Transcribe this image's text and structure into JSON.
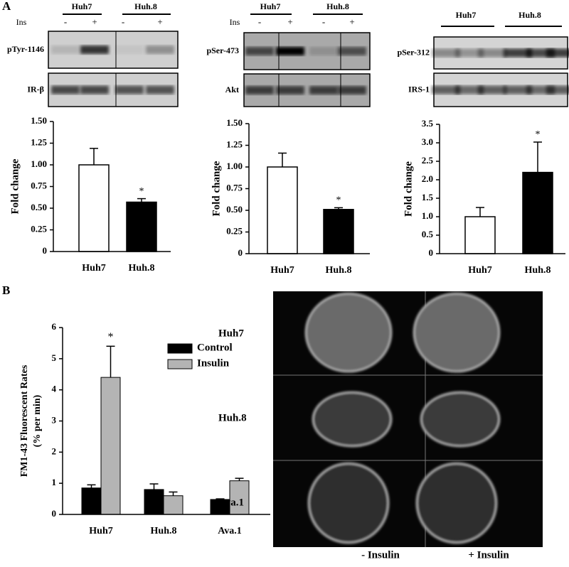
{
  "panels": [
    "A",
    "B"
  ],
  "blots": [
    {
      "lanes": [
        "Huh7",
        "Huh.8"
      ],
      "treatment": "Ins",
      "signs": [
        "-",
        "+",
        "-",
        "+"
      ],
      "rows": [
        "pTyr-1146",
        "IR-β"
      ]
    },
    {
      "lanes": [
        "Huh7",
        "Huh.8"
      ],
      "treatment": "Ins",
      "signs": [
        "-",
        "+",
        "-",
        "+"
      ],
      "rows": [
        "pSer-473",
        "Akt"
      ]
    },
    {
      "lanes": [
        "Huh7",
        "Huh.8"
      ],
      "rows": [
        "pSer-312",
        "IRS-1"
      ]
    }
  ],
  "chart_data": [
    {
      "type": "bar",
      "ylabel": "Fold change",
      "categories": [
        "Huh7",
        "Huh.8"
      ],
      "values": [
        1.0,
        0.57
      ],
      "errors": [
        0.19,
        0.04
      ],
      "colors": [
        "#ffffff",
        "#000000"
      ],
      "annotation": "*",
      "ylim": [
        0,
        1.5
      ],
      "yticks": [
        0,
        0.25,
        {
          "value": 0.5,
          "label": "0.50"
        },
        {
          "value": 0.75,
          "label": "0.75"
        },
        {
          "value": 1,
          "label": "1.00"
        },
        {
          "value": 1.25,
          "label": "1.25"
        },
        {
          "value": 1.5,
          "label": "1.50"
        }
      ]
    },
    {
      "type": "bar",
      "ylabel": "Fold change",
      "categories": [
        "Huh7",
        "Huh.8"
      ],
      "values": [
        1.0,
        0.51
      ],
      "errors": [
        0.16,
        0.02
      ],
      "colors": [
        "#ffffff",
        "#000000"
      ],
      "annotation": "*",
      "ylim": [
        0,
        1.5
      ],
      "yticks": [
        0,
        0.25,
        {
          "value": 0.5,
          "label": "0.50"
        },
        {
          "value": 0.75,
          "label": "0.75"
        },
        {
          "value": 1,
          "label": "1.00"
        },
        {
          "value": 1.25,
          "label": "1.25"
        },
        {
          "value": 1.5,
          "label": "1.50"
        }
      ]
    },
    {
      "type": "bar",
      "ylabel": "Fold change",
      "categories": [
        "Huh7",
        "Huh.8"
      ],
      "values": [
        1.0,
        2.2
      ],
      "errors": [
        0.25,
        0.82
      ],
      "colors": [
        "#ffffff",
        "#000000"
      ],
      "annotation": "*",
      "ylim": [
        0,
        3.5
      ],
      "yticks": [
        0,
        0.5,
        {
          "value": 1,
          "label": "1.0"
        },
        1.5,
        {
          "value": 2,
          "label": "2.0"
        },
        2.5,
        {
          "value": 3,
          "label": "3.0"
        },
        3.5
      ]
    },
    {
      "type": "bar",
      "ylabel": [
        "FM1-43 Fluorescent Rates",
        "(% per min)"
      ],
      "categories": [
        "Huh7",
        "Huh.8",
        "Ava.1"
      ],
      "annotation": "*",
      "series": [
        {
          "name": "Control",
          "color": "#000000",
          "values": [
            0.85,
            0.8,
            0.48
          ],
          "errors": [
            0.1,
            0.18,
            0.02
          ]
        },
        {
          "name": "Insulin",
          "color": "#b4b4b4",
          "values": [
            4.4,
            0.6,
            1.08
          ],
          "errors": [
            1.0,
            0.12,
            0.08
          ]
        }
      ],
      "ylim": [
        0,
        6
      ],
      "yticks": [
        0,
        1,
        2,
        3,
        4,
        5,
        6
      ]
    }
  ],
  "microscopy": {
    "rows": [
      "Huh7",
      "Huh.8",
      "Ava.1"
    ],
    "columns": [
      "- Insulin",
      "+ Insulin"
    ]
  }
}
